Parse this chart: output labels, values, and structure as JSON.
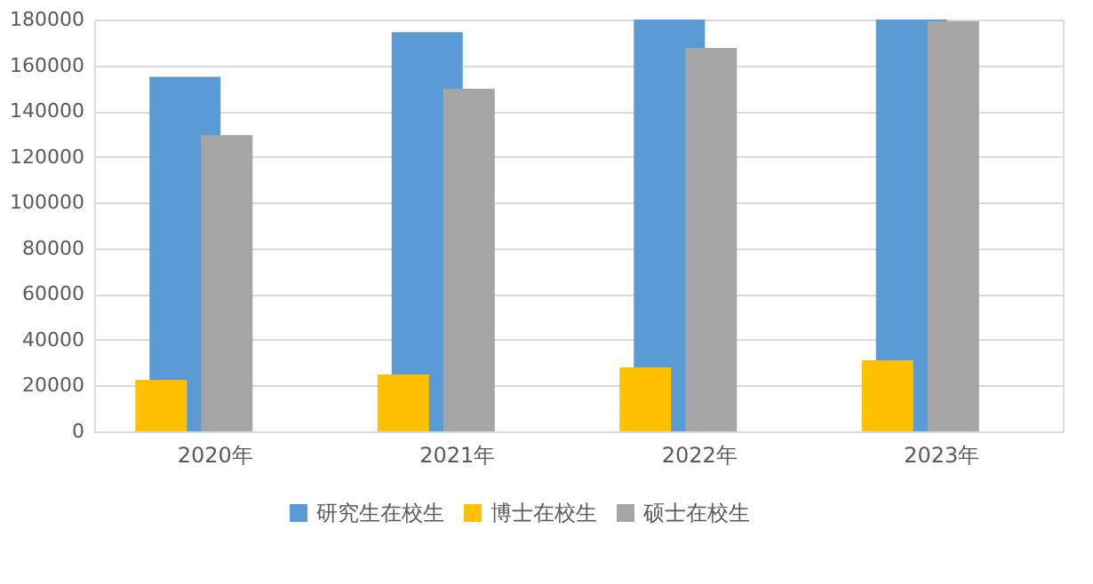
{
  "chart_data": {
    "type": "bar",
    "categories": [
      "2020年",
      "2021年",
      "2022年",
      "2023年"
    ],
    "series": [
      {
        "name": "研究生在校生",
        "color": "#5b9bd5",
        "values": [
          155000,
          174500,
          180000,
          180000
        ]
      },
      {
        "name": "博士在校生",
        "color": "#ffc000",
        "values": [
          22500,
          24800,
          27900,
          31000
        ]
      },
      {
        "name": "硕士在校生",
        "color": "#a5a5a5",
        "values": [
          129500,
          149700,
          167600,
          179200
        ]
      }
    ],
    "ylim": [
      0,
      180000
    ],
    "yticks": [
      0,
      20000,
      40000,
      60000,
      80000,
      100000,
      120000,
      140000,
      160000,
      180000
    ],
    "grid": "y",
    "legend": "bottom"
  }
}
